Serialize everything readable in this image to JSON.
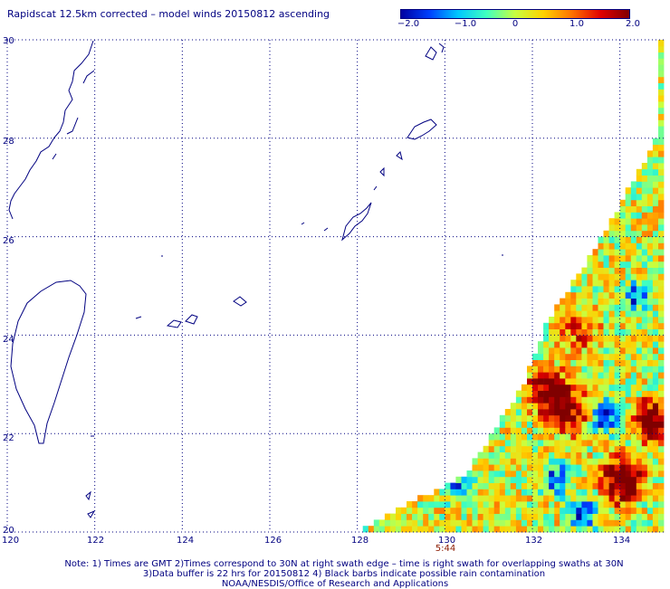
{
  "title": "Rapidscat 12.5km corrected – model winds 20150812 ascending",
  "colorbar": {
    "labels": [
      "−2.0",
      "−1.0",
      "0",
      "1.0",
      "2.0"
    ],
    "colors": [
      "#0000a0",
      "#0040ff",
      "#00c8ff",
      "#40ffc0",
      "#c8ff40",
      "#ffd000",
      "#ff7000",
      "#e00000",
      "#800000"
    ]
  },
  "axes": {
    "lat_labels": [
      "30",
      "28",
      "26",
      "24",
      "22",
      "20"
    ],
    "lon_labels": [
      "120",
      "122",
      "124",
      "126",
      "128",
      "130",
      "132",
      "134"
    ]
  },
  "time_label": "5:44",
  "notes": {
    "line1": "Note: 1) Times are GMT 2)Times correspond to 30N at right swath edge – time is right swath for overlapping swaths at 30N",
    "line2": "3)Data buffer is 22 hrs for 20150812 4) Black barbs indicate possible rain contamination",
    "line3": "NOAA/NESDIS/Office of Research and Applications"
  },
  "chart_data": {
    "type": "heatmap",
    "title": "Rapidscat 12.5km corrected – model winds 20150812 ascending",
    "xlabel": "",
    "ylabel": "",
    "xlim": [
      120,
      135
    ],
    "ylim": [
      20,
      30
    ],
    "xticks": [
      120,
      122,
      124,
      126,
      128,
      130,
      132,
      134
    ],
    "yticks": [
      20,
      22,
      24,
      26,
      28,
      30
    ],
    "colorbar_range": [
      -2.0,
      2.0
    ],
    "swath_edge": [
      [
        128.0,
        20.0
      ],
      [
        130.5,
        21.2
      ],
      [
        131.8,
        23.0
      ],
      [
        132.3,
        24.2
      ],
      [
        133.6,
        26.0
      ],
      [
        134.9,
        28.1
      ]
    ],
    "hot_spots": [
      [
        134.0,
        21.0,
        2.0
      ],
      [
        134.7,
        22.2,
        1.8
      ],
      [
        132.3,
        22.8,
        1.7
      ],
      [
        131.0,
        23.2,
        1.2
      ],
      [
        132.8,
        22.4,
        1.3
      ],
      [
        133.0,
        24.0,
        0.8
      ]
    ],
    "cold_spots": [
      [
        133.6,
        22.3,
        -1.5
      ],
      [
        134.3,
        24.7,
        -1.2
      ],
      [
        132.5,
        21.0,
        -1.3
      ],
      [
        130.2,
        20.9,
        -1.0
      ],
      [
        133.1,
        20.3,
        -1.4
      ]
    ]
  }
}
